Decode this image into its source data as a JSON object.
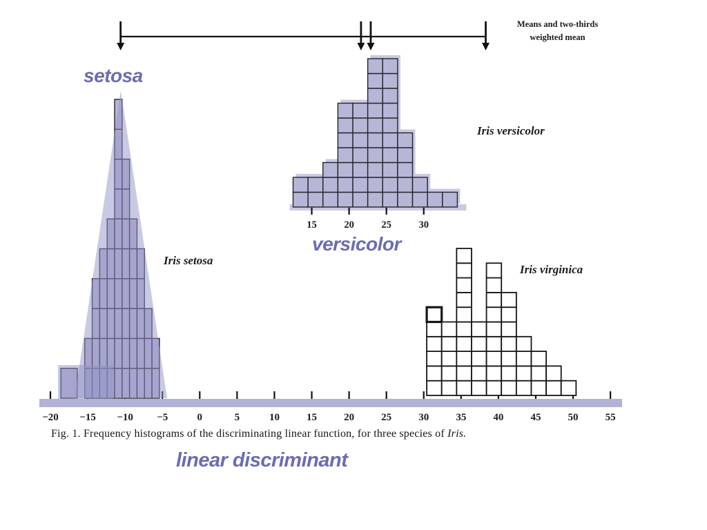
{
  "figure": {
    "caption_prefix": "Fig. 1.  Frequency histograms of the discriminating linear function, for three species of ",
    "caption_species": "Iris."
  },
  "top_legend": {
    "line1": "Means and two-thirds",
    "line2": "weighted mean"
  },
  "overlay_labels": {
    "setosa": "setosa",
    "versicolor": "versicolor",
    "linear_discriminant": "linear discriminant"
  },
  "species_labels": {
    "setosa": "Iris setosa",
    "versicolor": "Iris versicolor",
    "virginica": "Iris virginica"
  },
  "colors": {
    "annotation_purple": "#6b6cb2",
    "cell_fill_purple": "#b6b6d6",
    "overlay_purple": "rgba(147,147,199,0.5)",
    "axis_bar_purple": "#b2b2d7",
    "ink": "#1b1b1b"
  },
  "chart_data": {
    "type": "bar",
    "variant": "unit-square frequency histograms (1 cell = 1 specimen)",
    "title": "Fig. 1. Frequency histograms of the discriminating linear function, for three species of Iris.",
    "xlabel": "linear discriminant",
    "axis": {
      "min": -20,
      "max": 55,
      "tick_step": 5,
      "tick_values": [
        -20,
        -15,
        -10,
        -5,
        0,
        5,
        10,
        15,
        20,
        25,
        30,
        35,
        40,
        45,
        50,
        55
      ],
      "tick_labels": [
        "−20",
        "−15",
        "−10",
        "−5",
        "0",
        "5",
        "10",
        "15",
        "20",
        "25",
        "30",
        "35",
        "40",
        "45",
        "50",
        "55"
      ]
    },
    "series": [
      {
        "name": "Iris setosa",
        "shaded": true,
        "bin_start": -15.4,
        "bin_width": 1.0,
        "counts": [
          2,
          4,
          5,
          6,
          10,
          8,
          6,
          5,
          3,
          2
        ],
        "extra_cell": {
          "start": -18.6,
          "width": 2.2,
          "count": 1
        }
      },
      {
        "name": "Iris versicolor",
        "shaded": true,
        "bin_start": 12.5,
        "bin_width": 2.0,
        "counts": [
          2,
          2,
          3,
          7,
          7,
          10,
          10,
          5,
          2,
          1,
          1
        ],
        "own_axis_ticks": [
          15,
          20,
          25,
          30
        ],
        "own_axis_labels": [
          "15",
          "20",
          "25",
          "30"
        ]
      },
      {
        "name": "Iris virginica",
        "shaded": false,
        "bin_start": 30.4,
        "bin_width": 2.0,
        "counts": [
          6,
          5,
          10,
          5,
          9,
          7,
          4,
          3,
          2,
          1
        ],
        "bold_cell": "top cell of first column"
      }
    ],
    "mean_arrows": {
      "setosa": -10.6,
      "versicolor": 21.6,
      "weighted_mean": 22.9,
      "virginica": 38.3
    },
    "legend": "Means and two-thirds weighted mean",
    "legend_position": "top-right"
  }
}
